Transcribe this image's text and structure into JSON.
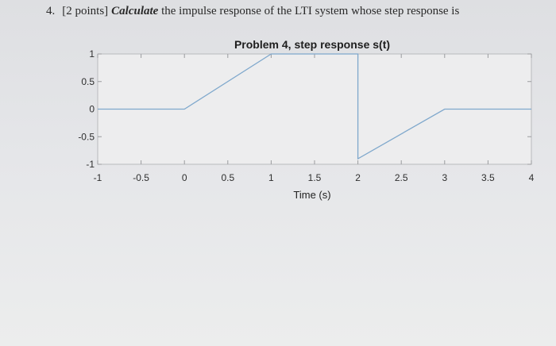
{
  "problem": {
    "number": "4.",
    "points": "[2 points]",
    "verb": "Calculate",
    "text": "the impulse response of the LTI system whose step response is"
  },
  "chart_data": {
    "type": "line",
    "title": "Problem 4, step response s(t)",
    "xlabel": "Time (s)",
    "ylabel": "",
    "xlim": [
      -1,
      4
    ],
    "ylim": [
      -1,
      1
    ],
    "x_ticks": [
      -1,
      -0.5,
      0,
      0.5,
      1,
      1.5,
      2,
      2.5,
      3,
      3.5,
      4
    ],
    "x_tick_labels": [
      "-1",
      "-0.5",
      "0",
      "0.5",
      "1",
      "1.5",
      "2",
      "2.5",
      "3",
      "3.5",
      "4"
    ],
    "y_ticks": [
      1,
      0.5,
      0,
      -0.5,
      -1
    ],
    "y_tick_labels": [
      "1",
      "0.5",
      "0",
      "-0.5",
      "-1"
    ],
    "grid": false,
    "series": [
      {
        "color": "#7fa8cc",
        "x": [
          -1,
          0,
          1,
          2,
          2,
          3,
          4
        ],
        "y": [
          0,
          0,
          1,
          1,
          -0.9,
          0,
          0
        ]
      }
    ]
  }
}
